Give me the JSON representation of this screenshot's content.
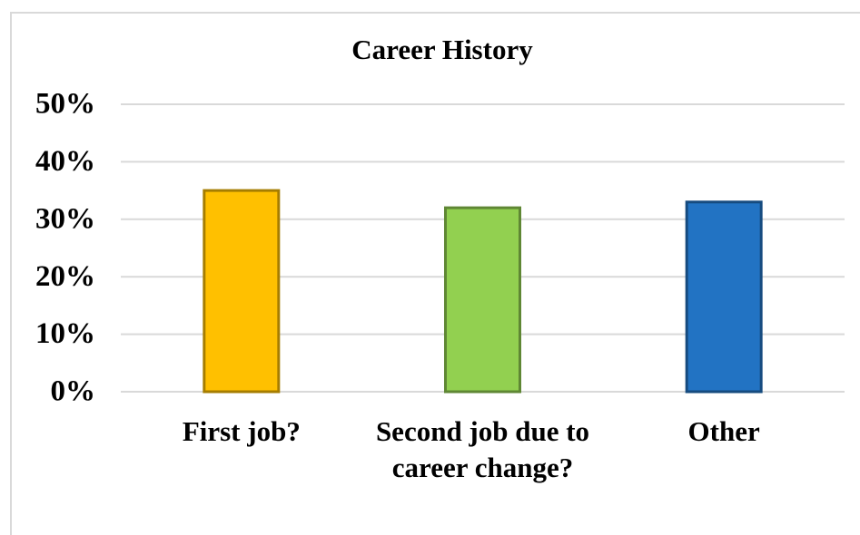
{
  "chart_data": {
    "type": "bar",
    "title": "Career History",
    "categories": [
      "First job?",
      "Second job due to career change?",
      "Other"
    ],
    "values": [
      35,
      32,
      33
    ],
    "colors": [
      "#FFC000",
      "#92D050",
      "#2273C3"
    ],
    "ylim": [
      0,
      50
    ],
    "yticks": [
      {
        "value": 0,
        "label": "0%"
      },
      {
        "value": 10,
        "label": "10%"
      },
      {
        "value": 20,
        "label": "20%"
      },
      {
        "value": 30,
        "label": "30%"
      },
      {
        "value": 40,
        "label": "40%"
      },
      {
        "value": 50,
        "label": "50%"
      }
    ],
    "grid": true
  }
}
